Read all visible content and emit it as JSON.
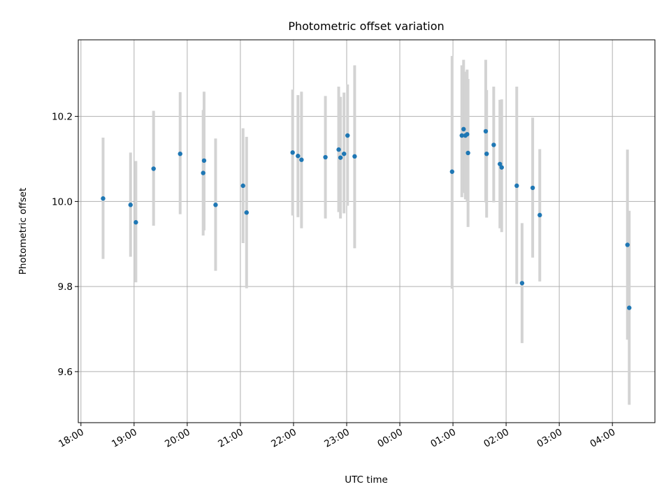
{
  "chart_data": {
    "type": "scatter",
    "title": "Photometric offset variation",
    "xlabel": "UTC time",
    "ylabel": "Photometric offset",
    "x_axis": {
      "kind": "time",
      "range": [
        "17:57",
        "04:48"
      ],
      "tick_labels": [
        "18:00",
        "19:00",
        "20:00",
        "21:00",
        "22:00",
        "23:00",
        "00:00",
        "01:00",
        "02:00",
        "03:00",
        "04:00"
      ],
      "tick_label_rotation_deg": 30
    },
    "y_axis": {
      "range": [
        9.48,
        10.38
      ],
      "ticks": [
        9.6,
        9.8,
        10.0,
        10.2
      ],
      "tick_labels": [
        "9.6",
        "9.8",
        "10.0",
        "10.2"
      ]
    },
    "grid": true,
    "marker_color": "#1f77b4",
    "errorbar_color": "#d3d3d3",
    "series": [
      {
        "points": [
          {
            "x": "18:25",
            "y": 10.007,
            "ylow": 9.865,
            "yhigh": 10.15
          },
          {
            "x": "18:56",
            "y": 9.992,
            "ylow": 9.87,
            "yhigh": 10.115
          },
          {
            "x": "19:02",
            "y": 9.951,
            "ylow": 9.81,
            "yhigh": 10.095
          },
          {
            "x": "19:22",
            "y": 10.077,
            "ylow": 9.943,
            "yhigh": 10.213
          },
          {
            "x": "19:52",
            "y": 10.112,
            "ylow": 9.97,
            "yhigh": 10.257
          },
          {
            "x": "20:18",
            "y": 10.067,
            "ylow": 9.92,
            "yhigh": 10.215
          },
          {
            "x": "20:19",
            "y": 10.096,
            "ylow": 9.932,
            "yhigh": 10.258
          },
          {
            "x": "20:32",
            "y": 9.992,
            "ylow": 9.837,
            "yhigh": 10.148
          },
          {
            "x": "21:03",
            "y": 10.037,
            "ylow": 9.902,
            "yhigh": 10.172
          },
          {
            "x": "21:07",
            "y": 9.974,
            "ylow": 9.796,
            "yhigh": 10.152
          },
          {
            "x": "21:59",
            "y": 10.115,
            "ylow": 9.967,
            "yhigh": 10.263
          },
          {
            "x": "22:05",
            "y": 10.107,
            "ylow": 9.963,
            "yhigh": 10.25
          },
          {
            "x": "22:09",
            "y": 10.098,
            "ylow": 9.937,
            "yhigh": 10.258
          },
          {
            "x": "22:36",
            "y": 10.104,
            "ylow": 9.96,
            "yhigh": 10.248
          },
          {
            "x": "22:51",
            "y": 10.122,
            "ylow": 9.975,
            "yhigh": 10.27
          },
          {
            "x": "22:53",
            "y": 10.103,
            "ylow": 9.96,
            "yhigh": 10.246
          },
          {
            "x": "22:57",
            "y": 10.112,
            "ylow": 9.972,
            "yhigh": 10.256
          },
          {
            "x": "23:01",
            "y": 10.155,
            "ylow": 9.99,
            "yhigh": 10.275
          },
          {
            "x": "23:09",
            "y": 10.106,
            "ylow": 9.89,
            "yhigh": 10.32
          },
          {
            "x": "00:59",
            "y": 10.07,
            "ylow": 9.795,
            "yhigh": 10.342
          },
          {
            "x": "01:10",
            "y": 10.155,
            "ylow": 10.01,
            "yhigh": 10.32
          },
          {
            "x": "01:12",
            "y": 10.17,
            "ylow": 10.02,
            "yhigh": 10.333
          },
          {
            "x": "01:14",
            "y": 10.155,
            "ylow": 10.005,
            "yhigh": 10.305
          },
          {
            "x": "01:16",
            "y": 10.158,
            "ylow": 10.0,
            "yhigh": 10.31
          },
          {
            "x": "01:17",
            "y": 10.114,
            "ylow": 9.94,
            "yhigh": 10.288
          },
          {
            "x": "01:37",
            "y": 10.165,
            "ylow": 9.998,
            "yhigh": 10.333
          },
          {
            "x": "01:38",
            "y": 10.112,
            "ylow": 9.962,
            "yhigh": 10.262
          },
          {
            "x": "01:46",
            "y": 10.133,
            "ylow": 9.998,
            "yhigh": 10.27
          },
          {
            "x": "01:53",
            "y": 10.088,
            "ylow": 9.937,
            "yhigh": 10.239
          },
          {
            "x": "01:55",
            "y": 10.08,
            "ylow": 9.928,
            "yhigh": 10.24
          },
          {
            "x": "02:12",
            "y": 10.037,
            "ylow": 9.806,
            "yhigh": 10.27
          },
          {
            "x": "02:18",
            "y": 9.808,
            "ylow": 9.667,
            "yhigh": 9.949
          },
          {
            "x": "02:30",
            "y": 10.032,
            "ylow": 9.868,
            "yhigh": 10.197
          },
          {
            "x": "02:38",
            "y": 9.968,
            "ylow": 9.812,
            "yhigh": 10.123
          },
          {
            "x": "04:17",
            "y": 9.898,
            "ylow": 9.675,
            "yhigh": 10.122
          },
          {
            "x": "04:19",
            "y": 9.75,
            "ylow": 9.522,
            "yhigh": 9.978
          }
        ]
      }
    ]
  }
}
